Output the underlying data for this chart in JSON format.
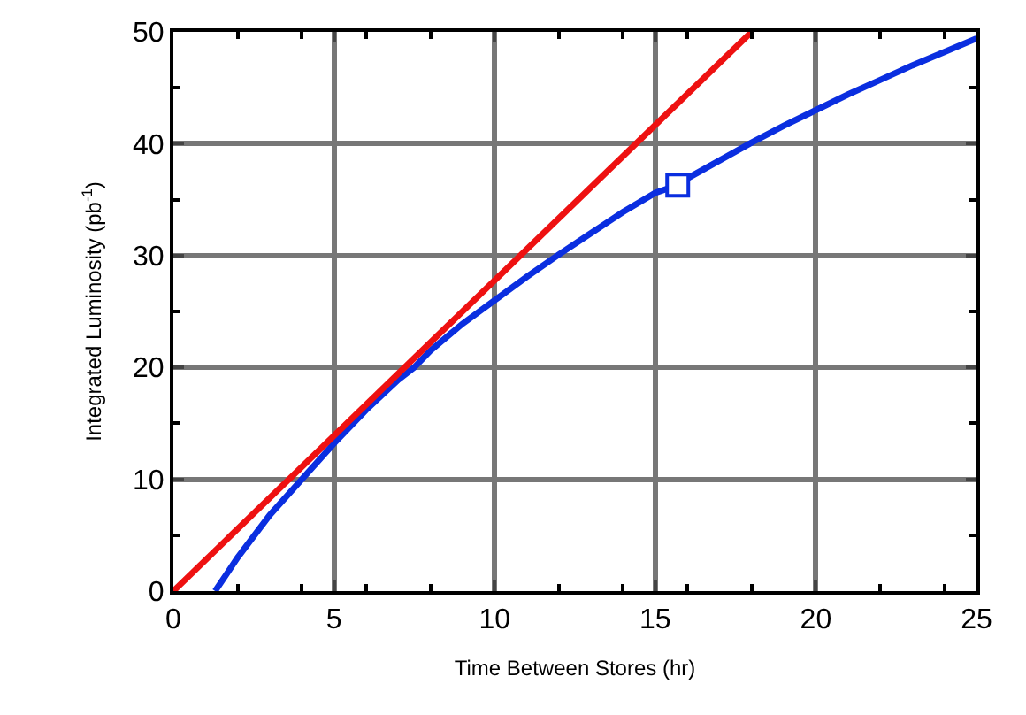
{
  "chart_data": {
    "type": "line",
    "xlabel": "Time Between Stores (hr)",
    "ylabel": "Integrated Luminosity (pb$^{-1}$)",
    "xlim": [
      0,
      25
    ],
    "ylim": [
      0,
      50
    ],
    "xticks": [
      0,
      5,
      10,
      15,
      20,
      25
    ],
    "yticks": [
      0,
      10,
      20,
      30,
      40,
      50
    ],
    "grid": true,
    "series": [
      {
        "color": "#0a2ee0",
        "x": [
          1.3,
          2,
          3,
          4,
          5,
          6,
          7,
          7.5,
          8,
          9,
          10,
          11,
          12,
          13,
          14,
          15,
          15.7,
          16,
          17,
          18,
          19,
          20,
          21,
          22,
          23,
          24,
          25
        ],
        "values": [
          0,
          3,
          6.8,
          10,
          13.2,
          16.2,
          18.9,
          20,
          21.5,
          23.9,
          26,
          28.1,
          30.1,
          32,
          33.9,
          35.6,
          36.3,
          36.9,
          38.5,
          40.1,
          41.6,
          43,
          44.4,
          45.7,
          47,
          48.2,
          49.4
        ]
      },
      {
        "color": "#ee1111",
        "x": [
          0,
          18
        ],
        "values": [
          0,
          50
        ]
      },
      {
        "type": "scatter",
        "marker": "square",
        "color": "#0a2ee0",
        "x": [
          15.7
        ],
        "values": [
          36.3
        ]
      }
    ]
  }
}
